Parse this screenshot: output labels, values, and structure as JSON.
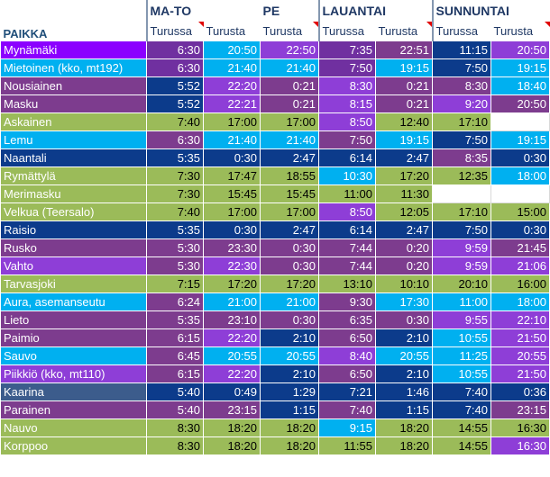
{
  "colors": {
    "green": "#9bbb59",
    "purple": "#7030a0",
    "plum": "#7d3c8e",
    "violet": "#8e3ed7",
    "cyan": "#00b0f0",
    "navy": "#0c3b8b",
    "slate": "#3c5c8c",
    "white": "#ffffff",
    "brightpurple": "#8b00ff"
  },
  "header": {
    "paikka": "PAIKKA",
    "groups": [
      "MA-TO",
      "PE",
      "LAUANTAI",
      "SUNNUNTAI"
    ],
    "sub": [
      "Turussa",
      "Turusta",
      "Turusta",
      "Turussa",
      "Turusta",
      "Turussa",
      "Turusta"
    ]
  },
  "rows": [
    {
      "name": "Mynämäki",
      "cells": [
        "6:30",
        "20:50",
        "22:50",
        "7:35",
        "22:51",
        "11:15",
        "20:50"
      ],
      "c": [
        "brightpurple",
        "purple",
        "cyan",
        "violet",
        "purple",
        "plum",
        "navy",
        "violet"
      ]
    },
    {
      "name": "Mietoinen (kko, mt192)",
      "cells": [
        "6:30",
        "21:40",
        "21:40",
        "7:50",
        "19:15",
        "7:50",
        "19:15"
      ],
      "c": [
        "cyan",
        "purple",
        "cyan",
        "cyan",
        "purple",
        "cyan",
        "navy",
        "cyan"
      ]
    },
    {
      "name": "Nousiainen",
      "cells": [
        "5:52",
        "22:20",
        "0:21",
        "8:30",
        "0:21",
        "8:30",
        "18:40"
      ],
      "c": [
        "plum",
        "navy",
        "violet",
        "plum",
        "violet",
        "plum",
        "plum",
        "cyan"
      ]
    },
    {
      "name": "Masku",
      "cells": [
        "5:52",
        "22:21",
        "0:21",
        "8:15",
        "0:21",
        "9:20",
        "20:50"
      ],
      "c": [
        "plum",
        "navy",
        "violet",
        "plum",
        "violet",
        "plum",
        "violet",
        "plum"
      ]
    },
    {
      "name": "Askainen",
      "cells": [
        "7:40",
        "17:00",
        "17:00",
        "8:50",
        "12:40",
        "17:10",
        ""
      ],
      "c": [
        "green",
        "green",
        "green",
        "green",
        "violet",
        "green",
        "green",
        "white"
      ]
    },
    {
      "name": "Lemu",
      "cells": [
        "6:30",
        "21:40",
        "21:40",
        "7:50",
        "19:15",
        "7:50",
        "19:15"
      ],
      "c": [
        "cyan",
        "plum",
        "cyan",
        "cyan",
        "plum",
        "cyan",
        "navy",
        "cyan"
      ]
    },
    {
      "name": "Naantali",
      "cells": [
        "5:35",
        "0:30",
        "2:47",
        "6:14",
        "2:47",
        "8:35",
        "0:30"
      ],
      "c": [
        "navy",
        "navy",
        "navy",
        "navy",
        "navy",
        "navy",
        "plum",
        "navy"
      ]
    },
    {
      "name": "Rymättylä",
      "cells": [
        "7:30",
        "17:47",
        "18:55",
        "10:30",
        "17:20",
        "12:35",
        "18:00"
      ],
      "c": [
        "green",
        "green",
        "green",
        "green",
        "cyan",
        "green",
        "green",
        "cyan"
      ]
    },
    {
      "name": "Merimasku",
      "cells": [
        "7:30",
        "15:45",
        "15:45",
        "11:00",
        "11:30",
        "",
        ""
      ],
      "c": [
        "green",
        "green",
        "green",
        "green",
        "green",
        "green",
        "white",
        "white"
      ]
    },
    {
      "name": "Velkua (Teersalo)",
      "cells": [
        "7:40",
        "17:00",
        "17:00",
        "8:50",
        "12:05",
        "17:10",
        "15:00"
      ],
      "c": [
        "green",
        "green",
        "green",
        "green",
        "violet",
        "green",
        "green",
        "green"
      ]
    },
    {
      "name": "Raisio",
      "cells": [
        "5:35",
        "0:30",
        "2:47",
        "6:14",
        "2:47",
        "7:50",
        "0:30"
      ],
      "c": [
        "navy",
        "navy",
        "navy",
        "navy",
        "navy",
        "navy",
        "navy",
        "navy"
      ]
    },
    {
      "name": "Rusko",
      "cells": [
        "5:30",
        "23:30",
        "0:30",
        "7:44",
        "0:20",
        "9:59",
        "21:45"
      ],
      "c": [
        "plum",
        "plum",
        "plum",
        "plum",
        "plum",
        "plum",
        "violet",
        "plum"
      ]
    },
    {
      "name": "Vahto",
      "cells": [
        "5:30",
        "22:30",
        "0:30",
        "7:44",
        "0:20",
        "9:59",
        "21:06"
      ],
      "c": [
        "violet",
        "plum",
        "violet",
        "plum",
        "plum",
        "plum",
        "violet",
        "violet"
      ]
    },
    {
      "name": "Tarvasjoki",
      "cells": [
        "7:15",
        "17:20",
        "17:20",
        "13:10",
        "10:10",
        "20:10",
        "16:00"
      ],
      "c": [
        "green",
        "green",
        "green",
        "green",
        "green",
        "green",
        "green",
        "green"
      ]
    },
    {
      "name": "Aura, asemanseutu",
      "cells": [
        "6:24",
        "21:00",
        "21:00",
        "9:30",
        "17:30",
        "11:00",
        "18:00"
      ],
      "c": [
        "cyan",
        "plum",
        "cyan",
        "cyan",
        "plum",
        "cyan",
        "cyan",
        "cyan"
      ]
    },
    {
      "name": "Lieto",
      "cells": [
        "5:35",
        "23:10",
        "0:30",
        "6:35",
        "0:30",
        "9:55",
        "22:10"
      ],
      "c": [
        "plum",
        "plum",
        "plum",
        "plum",
        "plum",
        "plum",
        "violet",
        "violet"
      ]
    },
    {
      "name": "Paimio",
      "cells": [
        "6:15",
        "22:20",
        "2:10",
        "6:50",
        "2:10",
        "10:55",
        "21:50"
      ],
      "c": [
        "plum",
        "plum",
        "violet",
        "navy",
        "plum",
        "navy",
        "cyan",
        "violet"
      ]
    },
    {
      "name": "Sauvo",
      "cells": [
        "6:45",
        "20:55",
        "20:55",
        "8:40",
        "20:55",
        "11:25",
        "20:55"
      ],
      "c": [
        "cyan",
        "plum",
        "cyan",
        "cyan",
        "violet",
        "cyan",
        "cyan",
        "violet"
      ]
    },
    {
      "name": "Piikkiö (kko, mt110)",
      "cells": [
        "6:15",
        "22:20",
        "2:10",
        "6:50",
        "2:10",
        "10:55",
        "21:50"
      ],
      "c": [
        "violet",
        "plum",
        "violet",
        "navy",
        "plum",
        "navy",
        "cyan",
        "violet"
      ]
    },
    {
      "name": "Kaarina",
      "cells": [
        "5:40",
        "0:49",
        "1:29",
        "7:21",
        "1:46",
        "7:40",
        "0:36"
      ],
      "c": [
        "slate",
        "navy",
        "navy",
        "navy",
        "navy",
        "navy",
        "navy",
        "navy"
      ]
    },
    {
      "name": "Parainen",
      "cells": [
        "5:40",
        "23:15",
        "1:15",
        "7:40",
        "1:15",
        "7:40",
        "23:15"
      ],
      "c": [
        "plum",
        "plum",
        "plum",
        "navy",
        "plum",
        "navy",
        "navy",
        "plum"
      ]
    },
    {
      "name": "Nauvo",
      "cells": [
        "8:30",
        "18:20",
        "18:20",
        "9:15",
        "18:20",
        "14:55",
        "16:30"
      ],
      "c": [
        "green",
        "green",
        "green",
        "green",
        "cyan",
        "green",
        "green",
        "green"
      ]
    },
    {
      "name": "Korppoo",
      "cells": [
        "8:30",
        "18:20",
        "18:20",
        "11:55",
        "18:20",
        "14:55",
        "16:30"
      ],
      "c": [
        "green",
        "green",
        "green",
        "green",
        "green",
        "green",
        "green",
        "violet"
      ]
    }
  ]
}
